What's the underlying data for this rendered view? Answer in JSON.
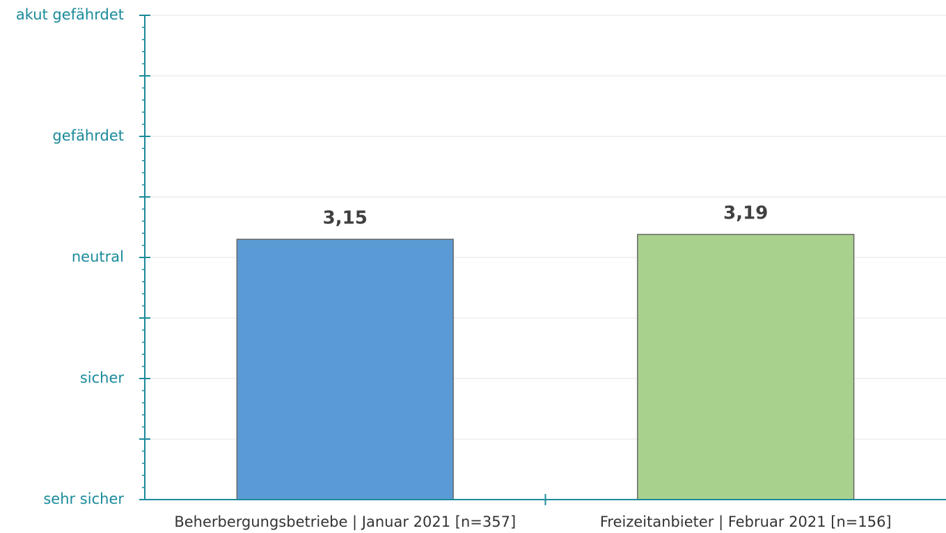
{
  "chart_data": {
    "type": "bar",
    "categories": [
      "Beherbergungsbetriebe | Januar 2021 [n=357]",
      "Freizeitanbieter | Februar 2021 [n=156]"
    ],
    "values": [
      3.15,
      3.19
    ],
    "value_labels": [
      "3,15",
      "3,19"
    ],
    "colors": [
      "#5b9bd5",
      "#a9d18e"
    ],
    "ylim": [
      1,
      5
    ],
    "yticks": [
      {
        "value": 1,
        "label": "sehr sicher"
      },
      {
        "value": 2,
        "label": "sicher"
      },
      {
        "value": 3,
        "label": "neutral"
      },
      {
        "value": 4,
        "label": "gefährdet"
      },
      {
        "value": 5,
        "label": "akut gefährdet"
      }
    ],
    "minor_yticks": [
      1.5,
      2.5,
      3.5,
      4.5
    ],
    "minor_tick_step": 0.1,
    "grid": true
  }
}
